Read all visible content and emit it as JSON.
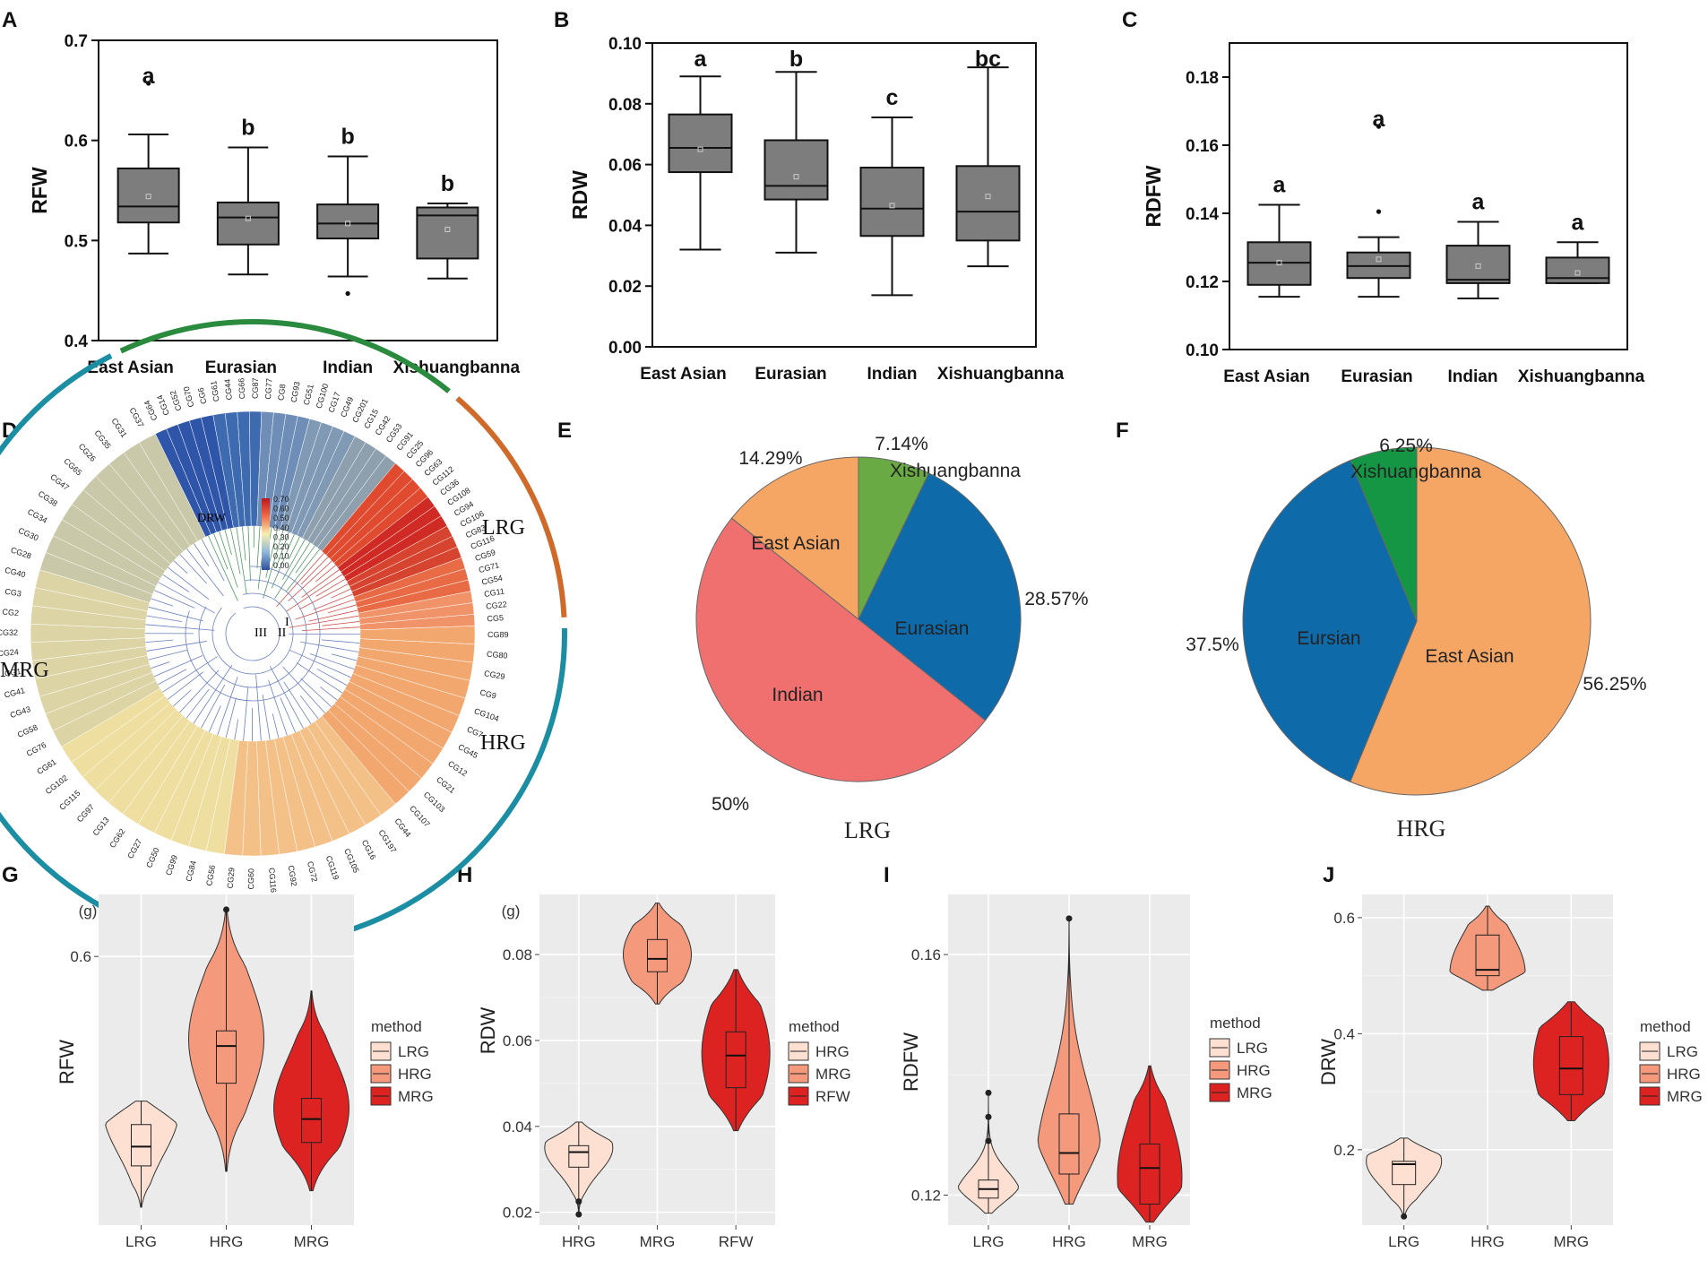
{
  "panel_labels": [
    "A",
    "B",
    "C",
    "D",
    "E",
    "F",
    "G",
    "H",
    "I",
    "J"
  ],
  "colors": {
    "box_fill": "#7d7d7d",
    "lrg_fill": "#fde0d2",
    "hrg_fill": "#f4997c",
    "mrg_fill": "#dd2222",
    "gg_panel": "#ebebeb",
    "pie_orange": "#f5a665",
    "pie_green": "#6aaa45",
    "pie_blue": "#0f6aaa",
    "pie_red": "#f07070",
    "pie_green2": "#159645",
    "ring_teal": "#1b8ea3",
    "ring_green": "#2a8a3e",
    "ring_orange": "#cf6a2a"
  },
  "chart_data": [
    {
      "id": "A",
      "type": "box",
      "ylabel": "RFW",
      "ylim": [
        0.4,
        0.7
      ],
      "yticks": [
        "0.4",
        "0.5",
        "0.6",
        "0.7"
      ],
      "categories": [
        "East Asian",
        "Eurasian",
        "Indian",
        "Xishuangbanna"
      ],
      "boxes": [
        {
          "min": 0.487,
          "q1": 0.518,
          "median": 0.534,
          "q3": 0.572,
          "max": 0.606,
          "mean": 0.544,
          "outliers": [
            0.657
          ],
          "sig": "a"
        },
        {
          "min": 0.466,
          "q1": 0.496,
          "median": 0.523,
          "q3": 0.538,
          "max": 0.593,
          "mean": 0.522,
          "outliers": [],
          "sig": "b"
        },
        {
          "min": 0.464,
          "q1": 0.502,
          "median": 0.517,
          "q3": 0.536,
          "max": 0.584,
          "mean": 0.517,
          "outliers": [
            0.447
          ],
          "sig": "b"
        },
        {
          "min": 0.462,
          "q1": 0.482,
          "median": 0.525,
          "q3": 0.533,
          "max": 0.537,
          "mean": 0.511,
          "outliers": [],
          "sig": "b"
        }
      ]
    },
    {
      "id": "B",
      "type": "box",
      "ylabel": "RDW",
      "ylim": [
        0.0,
        0.1
      ],
      "yticks": [
        "0.00",
        "0.02",
        "0.04",
        "0.06",
        "0.08",
        "0.10"
      ],
      "categories": [
        "East Asian",
        "Eurasian",
        "Indian",
        "Xishuangbanna"
      ],
      "boxes": [
        {
          "min": 0.032,
          "q1": 0.0575,
          "median": 0.0655,
          "q3": 0.0765,
          "max": 0.089,
          "mean": 0.065,
          "outliers": [],
          "sig": "a"
        },
        {
          "min": 0.031,
          "q1": 0.0485,
          "median": 0.053,
          "q3": 0.068,
          "max": 0.0905,
          "mean": 0.056,
          "outliers": [],
          "sig": "b"
        },
        {
          "min": 0.017,
          "q1": 0.0365,
          "median": 0.0455,
          "q3": 0.059,
          "max": 0.0755,
          "mean": 0.0465,
          "outliers": [],
          "sig": "c"
        },
        {
          "min": 0.0265,
          "q1": 0.035,
          "median": 0.0445,
          "q3": 0.0595,
          "max": 0.092,
          "mean": 0.0495,
          "outliers": [],
          "sig": "bc"
        }
      ]
    },
    {
      "id": "C",
      "type": "box",
      "ylabel": "RDFW",
      "ylim": [
        0.1,
        0.19
      ],
      "yticks": [
        "0.10",
        "0.12",
        "0.14",
        "0.16",
        "0.18"
      ],
      "categories": [
        "East Asian",
        "Eurasian",
        "Indian",
        "Xishuangbanna"
      ],
      "boxes": [
        {
          "min": 0.1155,
          "q1": 0.119,
          "median": 0.1255,
          "q3": 0.1315,
          "max": 0.1425,
          "mean": 0.1255,
          "outliers": [],
          "sig": "a"
        },
        {
          "min": 0.1155,
          "q1": 0.121,
          "median": 0.1245,
          "q3": 0.1285,
          "max": 0.133,
          "mean": 0.1265,
          "outliers": [
            0.1655,
            0.1405
          ],
          "sig": "a"
        },
        {
          "min": 0.115,
          "q1": 0.1195,
          "median": 0.1205,
          "q3": 0.1305,
          "max": 0.1375,
          "mean": 0.1245,
          "outliers": [],
          "sig": "a"
        },
        {
          "min": 0.1195,
          "q1": 0.1195,
          "median": 0.121,
          "q3": 0.127,
          "max": 0.1315,
          "mean": 0.1225,
          "outliers": [],
          "sig": "a"
        }
      ]
    },
    {
      "id": "E",
      "type": "pie",
      "title": "LRG",
      "slices": [
        {
          "label": "Xishuangbanna",
          "value": 7.14,
          "pct": "7.14%"
        },
        {
          "label": "Eurasian",
          "value": 28.57,
          "pct": "28.57%"
        },
        {
          "label": "Indian",
          "value": 50,
          "pct": "50%"
        },
        {
          "label": "East Asian",
          "value": 14.29,
          "pct": "14.29%"
        }
      ]
    },
    {
      "id": "F",
      "type": "pie",
      "title": "HRG",
      "slices": [
        {
          "label": "East Asian",
          "value": 56.25,
          "pct": "56.25%"
        },
        {
          "label": "Eursian",
          "value": 37.5,
          "pct": "37.5%"
        },
        {
          "label": "Xishuangbanna",
          "value": 6.25,
          "pct": "6.25%"
        }
      ]
    },
    {
      "id": "G",
      "type": "violin",
      "ylabel": "RFW",
      "unit": "(g)",
      "ylim": [
        0.405,
        0.645
      ],
      "yticks": [
        0.6
      ],
      "legend_title": "method",
      "groups": [
        {
          "name": "LRG",
          "fill": "lrg",
          "min": 0.418,
          "q1": 0.448,
          "median": 0.462,
          "q3": 0.478,
          "max": 0.495,
          "mode": 0.488
        },
        {
          "name": "HRG",
          "fill": "hrg",
          "min": 0.444,
          "q1": 0.508,
          "median": 0.535,
          "q3": 0.546,
          "max": 0.634,
          "mode": 0.54
        },
        {
          "name": "MRG",
          "fill": "mrg",
          "min": 0.43,
          "q1": 0.465,
          "median": 0.482,
          "q3": 0.497,
          "max": 0.575,
          "mode": 0.49
        }
      ],
      "outliers": [
        {
          "group": 1,
          "value": 0.634
        }
      ]
    },
    {
      "id": "H",
      "type": "violin",
      "ylabel": "RDW",
      "unit": "(g)",
      "ylim": [
        0.017,
        0.094
      ],
      "yticks": [
        0.02,
        0.04,
        0.06,
        0.08
      ],
      "legend_title": "method",
      "groups": [
        {
          "name": "HRG",
          "fill": "lrg",
          "min": 0.02,
          "q1": 0.0305,
          "median": 0.034,
          "q3": 0.0355,
          "max": 0.041,
          "mode": 0.035
        },
        {
          "name": "MRG",
          "fill": "hrg",
          "min": 0.0685,
          "q1": 0.076,
          "median": 0.079,
          "q3": 0.0835,
          "max": 0.092,
          "mode": 0.08
        },
        {
          "name": "RFW",
          "fill": "mrg",
          "min": 0.039,
          "q1": 0.049,
          "median": 0.0565,
          "q3": 0.062,
          "max": 0.0765,
          "mode": 0.057
        }
      ],
      "outliers": [
        {
          "group": 0,
          "value": 0.0225
        },
        {
          "group": 0,
          "value": 0.0195
        }
      ]
    },
    {
      "id": "I",
      "type": "violin",
      "ylabel": "RDFW",
      "ylim": [
        0.115,
        0.17
      ],
      "yticks": [
        0.12,
        0.16
      ],
      "legend_title": "method",
      "groups": [
        {
          "name": "LRG",
          "fill": "lrg",
          "min": 0.117,
          "q1": 0.1195,
          "median": 0.121,
          "q3": 0.1225,
          "max": 0.137,
          "mode": 0.12
        },
        {
          "name": "HRG",
          "fill": "hrg",
          "min": 0.1185,
          "q1": 0.1235,
          "median": 0.127,
          "q3": 0.1335,
          "max": 0.166,
          "mode": 0.126
        },
        {
          "name": "MRG",
          "fill": "mrg",
          "min": 0.1155,
          "q1": 0.1185,
          "median": 0.1245,
          "q3": 0.1285,
          "max": 0.1415,
          "mode": 0.123
        }
      ],
      "outliers": [
        {
          "group": 0,
          "value": 0.137
        },
        {
          "group": 0,
          "value": 0.133
        },
        {
          "group": 0,
          "value": 0.129
        },
        {
          "group": 1,
          "value": 0.166
        }
      ]
    },
    {
      "id": "J",
      "type": "violin",
      "ylabel": "DRW",
      "ylim": [
        0.07,
        0.64
      ],
      "yticks": [
        0.2,
        0.4,
        0.6
      ],
      "legend_title": "method",
      "groups": [
        {
          "name": "LRG",
          "fill": "lrg",
          "min": 0.085,
          "q1": 0.14,
          "median": 0.175,
          "q3": 0.18,
          "max": 0.22,
          "mode": 0.18
        },
        {
          "name": "HRG",
          "fill": "hrg",
          "min": 0.475,
          "q1": 0.5,
          "median": 0.51,
          "q3": 0.57,
          "max": 0.62,
          "mode": 0.505
        },
        {
          "name": "MRG",
          "fill": "mrg",
          "min": 0.25,
          "q1": 0.295,
          "median": 0.34,
          "q3": 0.395,
          "max": 0.455,
          "mode": 0.35
        }
      ],
      "outliers": [
        {
          "group": 0,
          "value": 0.085
        }
      ]
    }
  ],
  "cladogram": {
    "legend_ticks": [
      "0.70",
      "0.60",
      "0.50",
      "0.40",
      "0.30",
      "0.20",
      "0.10",
      "0.00"
    ],
    "ring_label": "DRW",
    "clades": [
      "I",
      "II",
      "III"
    ],
    "groups": [
      {
        "name": "LRG",
        "ids": [
          "CG64",
          "CG14",
          "CG52",
          "CG70",
          "CG6",
          "CG61",
          "CG44",
          "CG66",
          "CG87",
          "CG77",
          "CG8",
          "CG93",
          "CG51",
          "CG100",
          "CG17",
          "CG49",
          "CG201",
          "CG15",
          "CG42",
          "CG53",
          "CG91"
        ]
      },
      {
        "name": "HRG",
        "ids": [
          "CG25",
          "CG96",
          "CG63",
          "CG112",
          "CG36",
          "CG108",
          "CG94",
          "CG106",
          "CG83",
          "CG116",
          "CG59",
          "CG71",
          "CG54",
          "CG11",
          "CG22",
          "CG5"
        ]
      },
      {
        "name": "MRG",
        "ids": [
          "CG89",
          "CG80",
          "CG29",
          "CG9",
          "CG104",
          "CG7",
          "CG45",
          "CG12",
          "CG21",
          "CG103",
          "CG107",
          "CG44",
          "CG197",
          "CG16",
          "CG105",
          "CG119",
          "CG72",
          "CG92",
          "CG116",
          "CG60",
          "CG29",
          "CG56",
          "CG84",
          "CG99",
          "CG50",
          "CG27",
          "CG62",
          "CG13",
          "CG97",
          "CG115",
          "CG102",
          "CG61",
          "CG76",
          "CG58",
          "CG43",
          "CG41",
          "CG1",
          "CG24",
          "CG32",
          "CG2",
          "CG3",
          "CG40",
          "CG28",
          "CG30",
          "CG34",
          "CG38",
          "CG47",
          "CG65",
          "CG26",
          "CG35",
          "CG31",
          "CG37"
        ]
      }
    ]
  }
}
